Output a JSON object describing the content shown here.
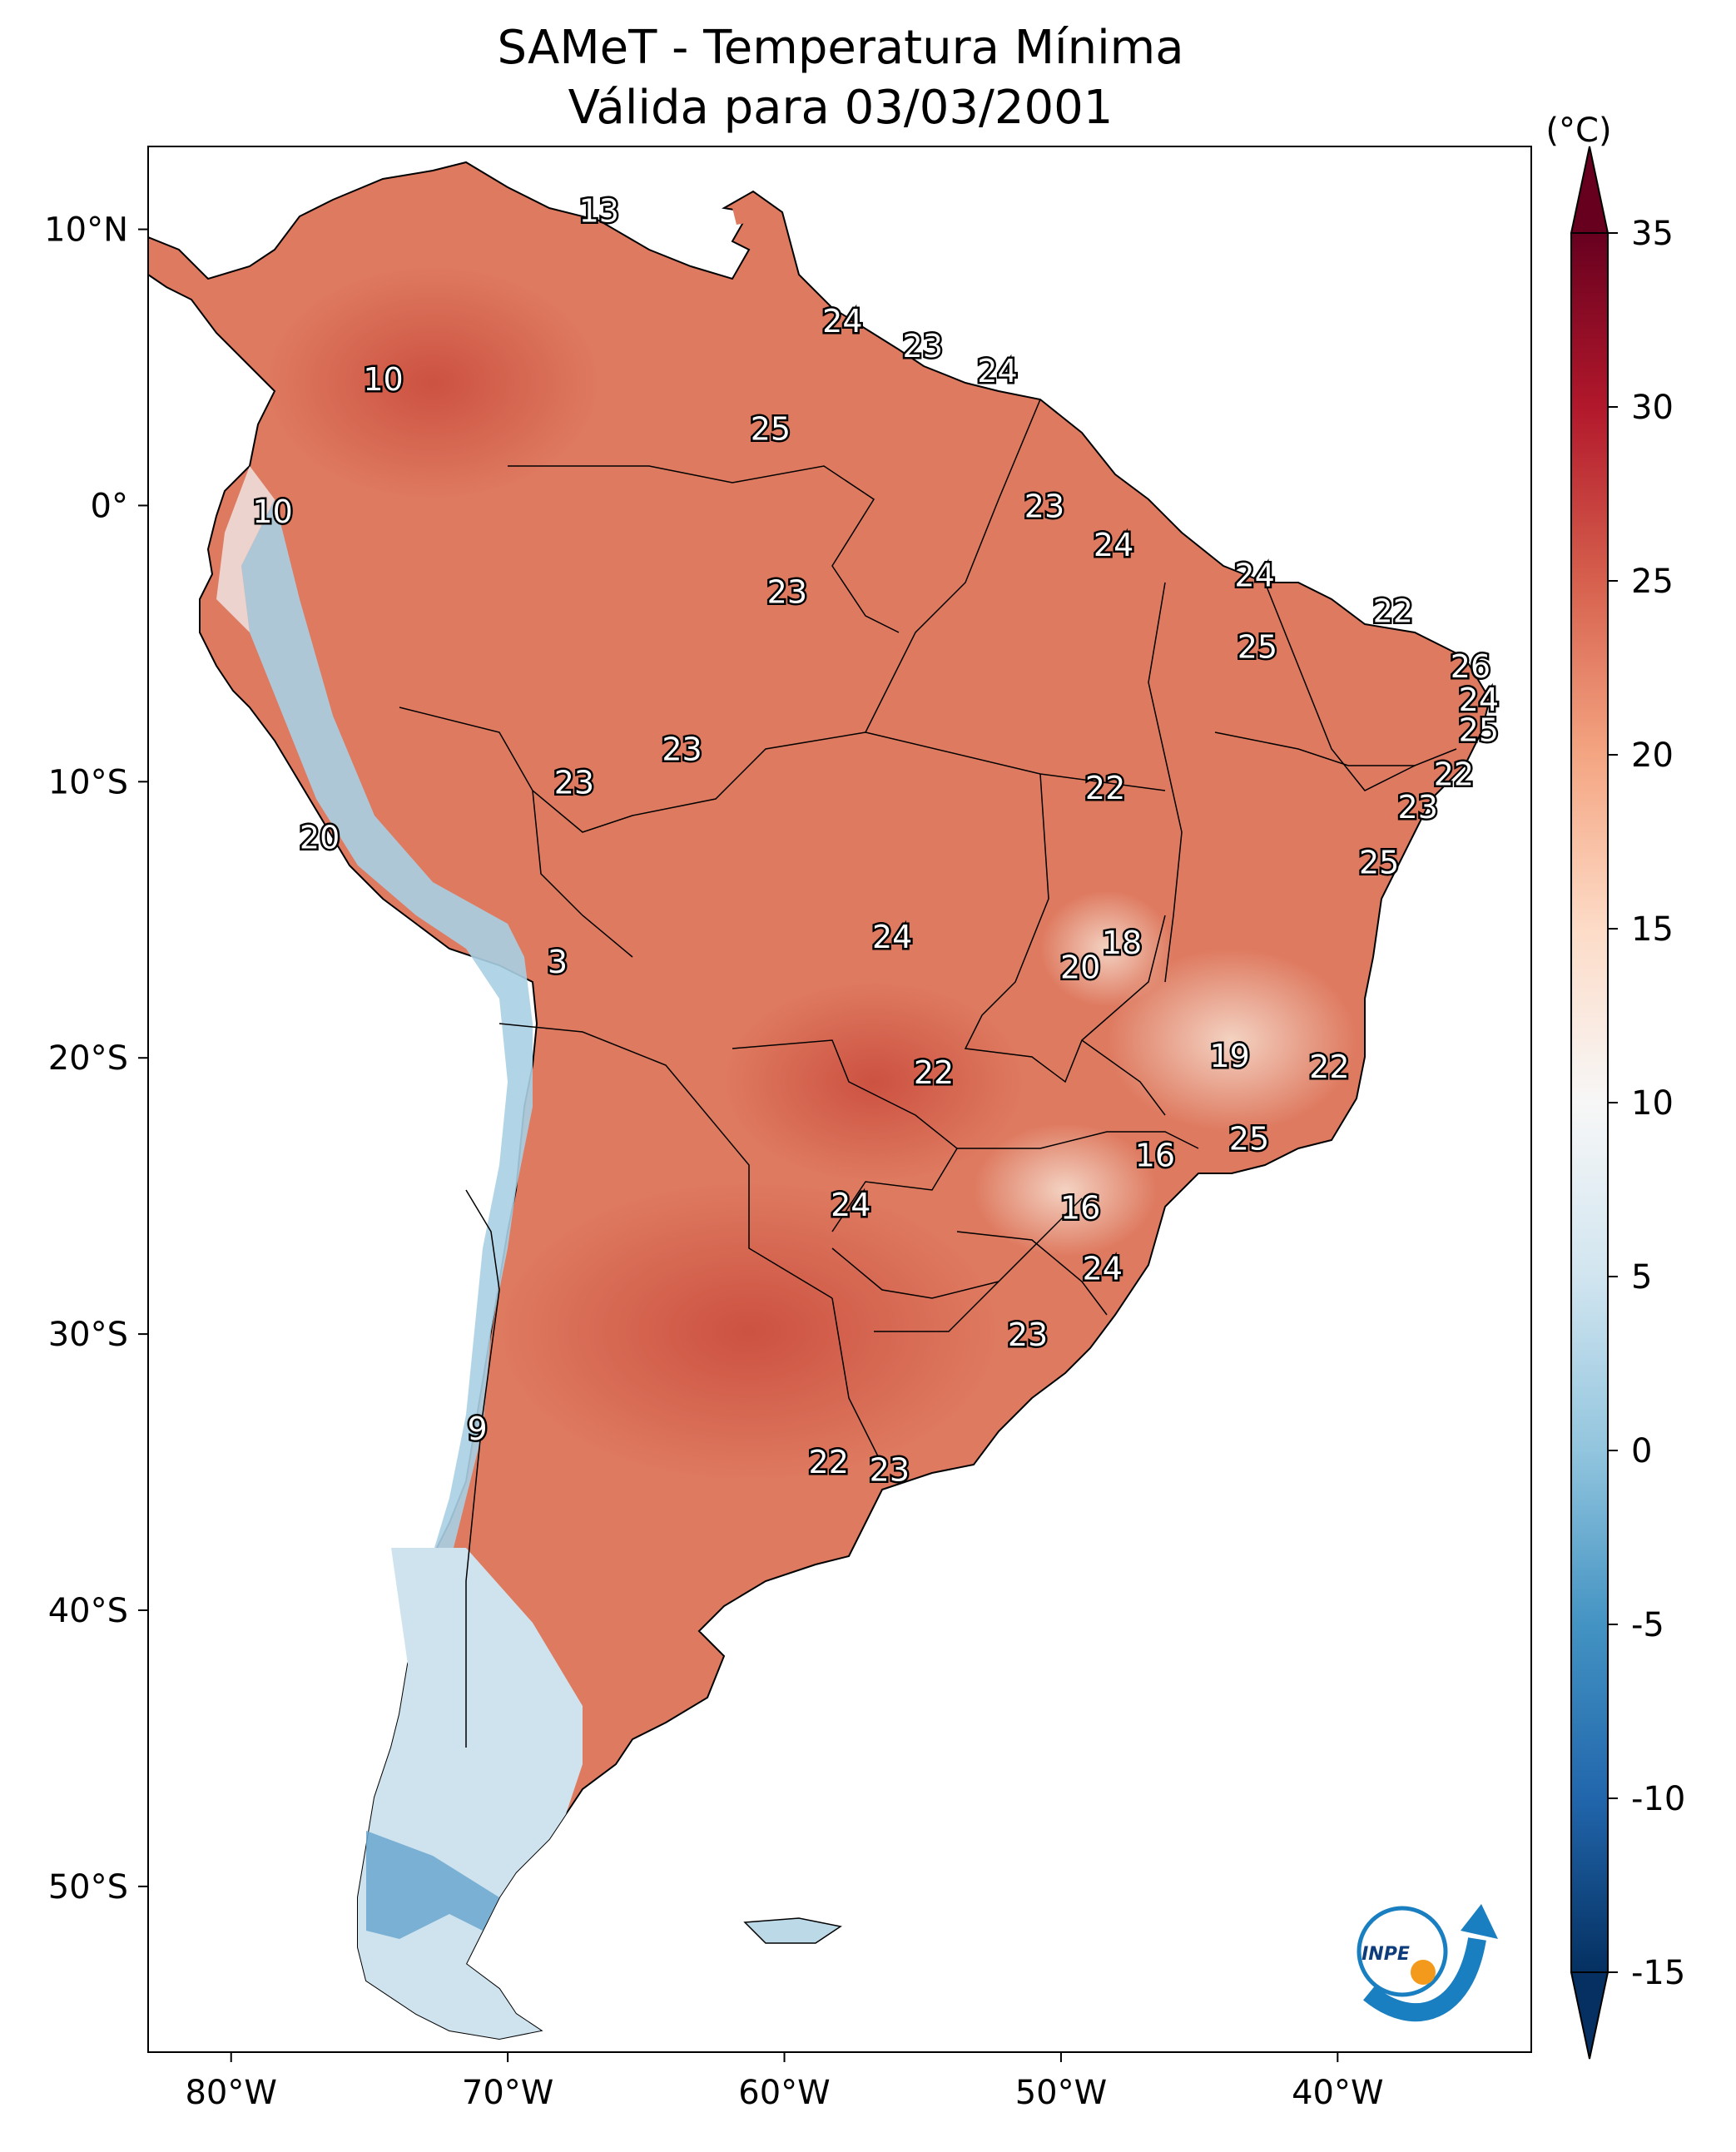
{
  "title": {
    "line1": "SAMeT - Temperatura Mínima",
    "line2": "Válida para 03/03/2001"
  },
  "map": {
    "lon_range": [
      -83,
      -33
    ],
    "lat_range": [
      -56,
      13
    ],
    "x_ticks": [
      {
        "lon": -80,
        "label": "80°W"
      },
      {
        "lon": -70,
        "label": "70°W"
      },
      {
        "lon": -60,
        "label": "60°W"
      },
      {
        "lon": -50,
        "label": "50°W"
      },
      {
        "lon": -40,
        "label": "40°W"
      }
    ],
    "y_ticks": [
      {
        "lat": 10,
        "label": "10°N"
      },
      {
        "lat": 0,
        "label": "0°"
      },
      {
        "lat": -10,
        "label": "10°S"
      },
      {
        "lat": -20,
        "label": "20°S"
      },
      {
        "lat": -30,
        "label": "30°S"
      },
      {
        "lat": -40,
        "label": "40°S"
      },
      {
        "lat": -50,
        "label": "50°S"
      }
    ],
    "station_values": [
      {
        "lon": -66.7,
        "lat": 10.7,
        "value": "13"
      },
      {
        "lon": -57.9,
        "lat": 6.7,
        "value": "24"
      },
      {
        "lon": -55.0,
        "lat": 5.8,
        "value": "23"
      },
      {
        "lon": -52.3,
        "lat": 4.9,
        "value": "24"
      },
      {
        "lon": -74.5,
        "lat": 4.6,
        "value": "10"
      },
      {
        "lon": -60.5,
        "lat": 2.8,
        "value": "25"
      },
      {
        "lon": -78.5,
        "lat": -0.2,
        "value": "10"
      },
      {
        "lon": -50.6,
        "lat": 0.0,
        "value": "23"
      },
      {
        "lon": -48.1,
        "lat": -1.4,
        "value": "24"
      },
      {
        "lon": -59.9,
        "lat": -3.1,
        "value": "23"
      },
      {
        "lon": -43.0,
        "lat": -2.5,
        "value": "24"
      },
      {
        "lon": -38.0,
        "lat": -3.8,
        "value": "22"
      },
      {
        "lon": -42.9,
        "lat": -5.1,
        "value": "25"
      },
      {
        "lon": -35.2,
        "lat": -5.8,
        "value": "26"
      },
      {
        "lon": -34.9,
        "lat": -7.0,
        "value": "24"
      },
      {
        "lon": -34.9,
        "lat": -8.1,
        "value": "25"
      },
      {
        "lon": -63.7,
        "lat": -8.8,
        "value": "23"
      },
      {
        "lon": -67.6,
        "lat": -10.0,
        "value": "23"
      },
      {
        "lon": -35.8,
        "lat": -9.7,
        "value": "22"
      },
      {
        "lon": -48.4,
        "lat": -10.2,
        "value": "22"
      },
      {
        "lon": -37.1,
        "lat": -10.9,
        "value": "23"
      },
      {
        "lon": -76.8,
        "lat": -12.0,
        "value": "20"
      },
      {
        "lon": -38.5,
        "lat": -12.9,
        "value": "25"
      },
      {
        "lon": -56.1,
        "lat": -15.6,
        "value": "24"
      },
      {
        "lon": -47.8,
        "lat": -15.8,
        "value": "18"
      },
      {
        "lon": -49.3,
        "lat": -16.7,
        "value": "20"
      },
      {
        "lon": -68.2,
        "lat": -16.5,
        "value": "3"
      },
      {
        "lon": -43.9,
        "lat": -19.9,
        "value": "19"
      },
      {
        "lon": -40.3,
        "lat": -20.3,
        "value": "22"
      },
      {
        "lon": -54.6,
        "lat": -20.5,
        "value": "22"
      },
      {
        "lon": -43.2,
        "lat": -22.9,
        "value": "25"
      },
      {
        "lon": -46.6,
        "lat": -23.5,
        "value": "16"
      },
      {
        "lon": -57.6,
        "lat": -25.3,
        "value": "24"
      },
      {
        "lon": -49.3,
        "lat": -25.4,
        "value": "16"
      },
      {
        "lon": -48.5,
        "lat": -27.6,
        "value": "24"
      },
      {
        "lon": -51.2,
        "lat": -30.0,
        "value": "23"
      },
      {
        "lon": -71.1,
        "lat": -33.4,
        "value": "9"
      },
      {
        "lon": -58.4,
        "lat": -34.6,
        "value": "22"
      },
      {
        "lon": -56.2,
        "lat": -34.9,
        "value": "23"
      }
    ]
  },
  "colorbar": {
    "unit": "(°C)",
    "vmin": -15,
    "vmax": 35,
    "ticks": [
      "35",
      "30",
      "25",
      "20",
      "15",
      "10",
      "5",
      "0",
      "-5",
      "-10",
      "-15"
    ],
    "stops": [
      {
        "v": -15,
        "color": "#053061"
      },
      {
        "v": -10,
        "color": "#2166ac"
      },
      {
        "v": -5,
        "color": "#4393c3"
      },
      {
        "v": 0,
        "color": "#92c5de"
      },
      {
        "v": 5,
        "color": "#d1e5f0"
      },
      {
        "v": 10,
        "color": "#f7f7f7"
      },
      {
        "v": 15,
        "color": "#fddbc7"
      },
      {
        "v": 20,
        "color": "#f4a582"
      },
      {
        "v": 25,
        "color": "#d6604d"
      },
      {
        "v": 30,
        "color": "#b2182b"
      },
      {
        "v": 35,
        "color": "#67001f"
      }
    ]
  },
  "logo": {
    "text": "INPE"
  }
}
